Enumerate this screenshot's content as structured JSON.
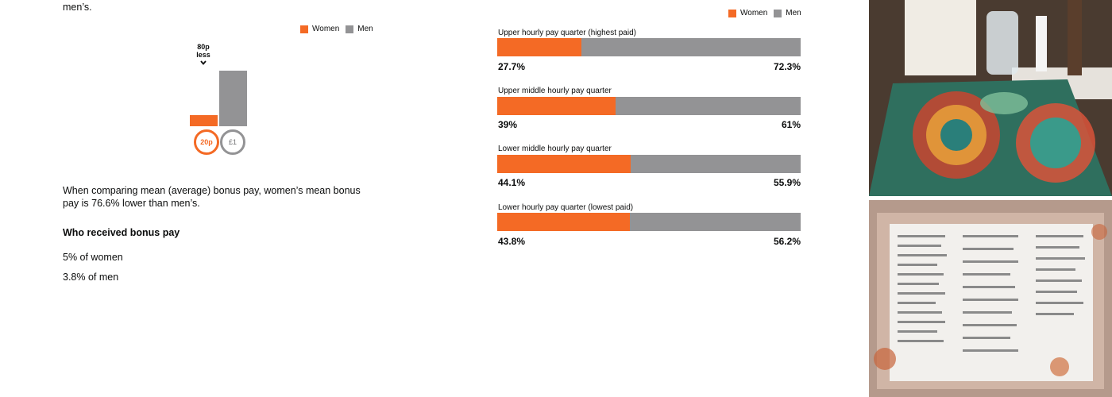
{
  "intro_tail": "men’s.",
  "legend": {
    "women": "Women",
    "men": "Men"
  },
  "colors": {
    "women": "#f46a25",
    "men": "#939395"
  },
  "hourly_comparison": {
    "difference_line1": "80p",
    "difference_line2": "less",
    "women_label": "20p",
    "men_label": "£1"
  },
  "bonus_text": "When comparing mean (average) bonus pay, women’s mean bonus pay is 76.6% lower than men’s.",
  "who_received_heading": "Who received bonus pay",
  "women_bonus_stat": "5% of women",
  "men_bonus_stat": "3.8% of men",
  "chart_data": {
    "type": "bar",
    "stacked": true,
    "orientation": "horizontal",
    "categories": [
      "Upper hourly pay quarter (highest paid)",
      "Upper middle hourly pay quarter",
      "Lower middle hourly pay quarter",
      "Lower hourly pay quarter (lowest paid)"
    ],
    "series": [
      {
        "name": "Women",
        "values": [
          27.7,
          39,
          44.1,
          43.8
        ],
        "labels": [
          "27.7%",
          "39%",
          "44.1%",
          "43.8%"
        ]
      },
      {
        "name": "Men",
        "values": [
          72.3,
          61,
          55.9,
          56.2
        ],
        "labels": [
          "72.3%",
          "61%",
          "55.9%",
          "56.2%"
        ]
      }
    ],
    "xlim": [
      0,
      100
    ],
    "legend_position": "top-right"
  }
}
